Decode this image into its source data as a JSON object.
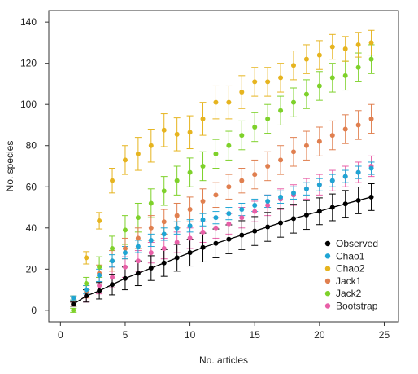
{
  "chart_data": {
    "type": "scatter",
    "xlabel": "No. articles",
    "ylabel": "No. species",
    "xlim": [
      0,
      25
    ],
    "ylim": [
      0,
      140
    ],
    "xticks": [
      0,
      5,
      10,
      15,
      20,
      25
    ],
    "yticks": [
      0,
      20,
      40,
      60,
      80,
      100,
      120,
      140
    ],
    "grid": false,
    "legend_position": "bottom-right",
    "error_bars": true,
    "x": [
      1,
      2,
      3,
      4,
      5,
      6,
      7,
      8,
      9,
      10,
      11,
      12,
      13,
      14,
      15,
      16,
      17,
      18,
      19,
      20,
      21,
      22,
      23,
      24
    ],
    "series": [
      {
        "name": "Observed",
        "color": "#000000",
        "line": true,
        "values": [
          3,
          7,
          9.5,
          12.5,
          15.5,
          18,
          20.5,
          23,
          25.5,
          28,
          30.5,
          32.5,
          34.5,
          36.5,
          38.5,
          40.5,
          42.5,
          44.5,
          46.3,
          48.1,
          50,
          51.7,
          53.4,
          55
        ],
        "errors": [
          1,
          3,
          4,
          5,
          5.5,
          6,
          6,
          6.5,
          6.5,
          6.5,
          7,
          7,
          7,
          7,
          7,
          7,
          7,
          7,
          7,
          6.5,
          6.5,
          6.5,
          6.5,
          6.5
        ]
      },
      {
        "name": "Chao1",
        "color": "#1fa5d4",
        "values": [
          6,
          10,
          17,
          24,
          28,
          31,
          34,
          37,
          40,
          41,
          44,
          45,
          47,
          49,
          51,
          53,
          55,
          57,
          59,
          61,
          63,
          65,
          67,
          69
        ],
        "errors": [
          1,
          2,
          3,
          3,
          3,
          3,
          3,
          3,
          3,
          3,
          3,
          3,
          3,
          3,
          3,
          3,
          3,
          3,
          3,
          3,
          3,
          3,
          3,
          3
        ]
      },
      {
        "name": "Chao2",
        "color": "#e6b41f",
        "values": [
          6,
          25.5,
          43.5,
          63,
          73,
          76,
          80,
          87.5,
          85.5,
          86.5,
          93,
          101,
          101,
          106,
          111,
          111,
          113,
          119,
          122,
          124,
          128,
          127,
          129,
          130
        ],
        "errors": [
          1,
          3,
          4,
          6,
          7,
          8,
          8,
          8,
          8,
          8,
          8,
          8,
          8,
          8,
          7,
          7,
          7,
          7,
          7,
          7,
          6,
          6,
          6,
          6
        ]
      },
      {
        "name": "Jack1",
        "color": "#e07f4f",
        "values": [
          3,
          9,
          18,
          24,
          30,
          35,
          40,
          43,
          46,
          49,
          53,
          56,
          60,
          63,
          66,
          70,
          73,
          77,
          80,
          82,
          85,
          88,
          90,
          93
        ],
        "errors": [
          1,
          3,
          4,
          5,
          5,
          5,
          6,
          6,
          6,
          6,
          6,
          6,
          6,
          6,
          7,
          7,
          7,
          7,
          7,
          7,
          7,
          7,
          7,
          7
        ]
      },
      {
        "name": "Jack2",
        "color": "#7ed12a",
        "values": [
          0,
          13,
          21,
          30,
          39,
          45,
          52,
          58,
          63,
          67,
          70,
          76,
          80,
          85,
          89,
          93,
          97,
          101,
          105,
          109,
          113,
          114,
          118,
          122
        ],
        "errors": [
          1,
          3,
          5,
          6,
          7,
          7,
          7,
          7,
          7,
          7,
          7,
          7,
          7,
          7,
          7,
          7,
          7,
          7,
          7,
          7,
          7,
          7,
          7,
          7
        ]
      },
      {
        "name": "Bootstrap",
        "color": "#e85fa7",
        "values": [
          3,
          7,
          12,
          16,
          21,
          24,
          28,
          30,
          33,
          35,
          38,
          40,
          42,
          45,
          48,
          51,
          54,
          56,
          59,
          61,
          63,
          65,
          67,
          70
        ],
        "errors": [
          1,
          3,
          4,
          5,
          5,
          5,
          5,
          5,
          5,
          5,
          5,
          5,
          5,
          5,
          5,
          5,
          5,
          5,
          5,
          5,
          5,
          5,
          5,
          5
        ]
      }
    ]
  }
}
